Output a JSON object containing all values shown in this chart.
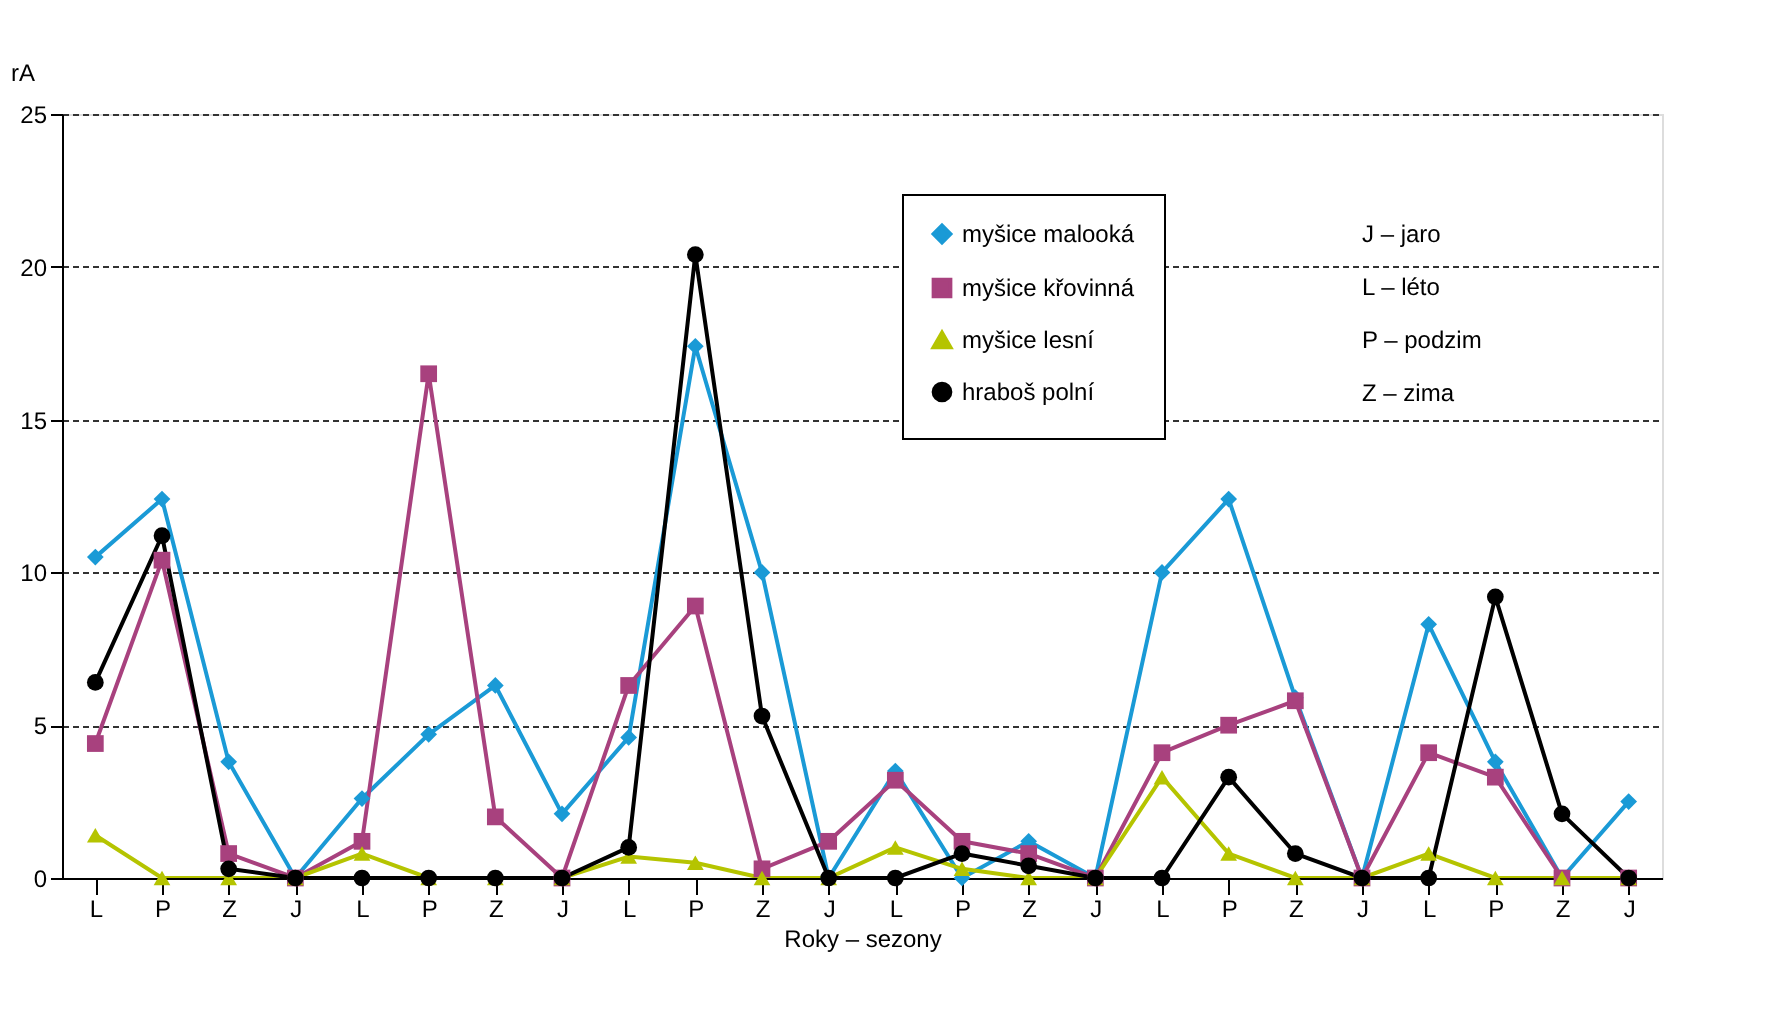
{
  "chart_data": {
    "type": "line",
    "xlabel": "Roky – sezony",
    "ylabel": "rA",
    "categories": [
      "L",
      "P",
      "Z",
      "J",
      "L",
      "P",
      "Z",
      "J",
      "L",
      "P",
      "Z",
      "J",
      "L",
      "P",
      "Z",
      "J",
      "L",
      "P",
      "Z",
      "J",
      "L",
      "P",
      "Z",
      "J"
    ],
    "series": [
      {
        "name": "myšice malooká",
        "color": "#1a9ad6",
        "marker": "diamond",
        "values": [
          10.5,
          12.4,
          3.8,
          0,
          2.6,
          4.7,
          6.3,
          2.1,
          4.6,
          17.4,
          10.0,
          0,
          3.5,
          0,
          1.2,
          0,
          10.0,
          12.4,
          5.9,
          0,
          8.3,
          3.8,
          0,
          2.5
        ]
      },
      {
        "name": "myšice křovinná",
        "color": "#a8417e",
        "marker": "square",
        "values": [
          4.4,
          10.4,
          0.8,
          0,
          1.2,
          16.5,
          2.0,
          0,
          6.3,
          8.9,
          0.3,
          1.2,
          3.2,
          1.2,
          0.8,
          0,
          4.1,
          5.0,
          5.8,
          0,
          4.1,
          3.3,
          0,
          0
        ]
      },
      {
        "name": "myšice lesní",
        "color": "#b5c400",
        "marker": "triangle",
        "values": [
          1.4,
          0,
          0,
          0,
          0.8,
          0,
          0,
          0,
          0.7,
          0.5,
          0,
          0,
          1.0,
          0.3,
          0,
          0,
          3.3,
          0.8,
          0,
          0,
          0.8,
          0,
          0,
          0
        ]
      },
      {
        "name": "hraboš polní",
        "color": "#000000",
        "marker": "circle",
        "values": [
          6.4,
          11.2,
          0.3,
          0,
          0,
          0,
          0,
          0,
          1.0,
          20.4,
          5.3,
          0,
          0,
          0.8,
          0.4,
          0,
          0,
          3.3,
          0.8,
          0,
          0,
          9.2,
          2.1,
          0
        ]
      }
    ],
    "ylim": [
      0,
      25
    ],
    "yticks": [
      0,
      5,
      10,
      15,
      20,
      25
    ],
    "grid": "y",
    "legend": "top right",
    "annotations": [
      "J – jaro",
      "L – léto",
      "P – podzim",
      "Z – zima"
    ]
  }
}
